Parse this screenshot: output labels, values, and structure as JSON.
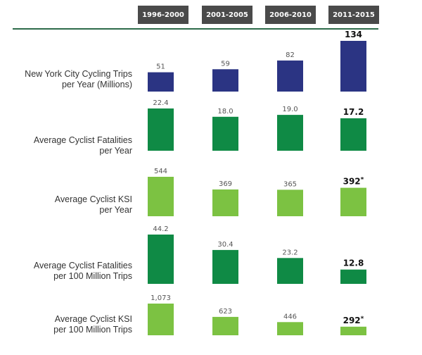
{
  "periods": [
    "1996-2000",
    "2001-2005",
    "2006-2010",
    "2011-2015"
  ],
  "colors": {
    "header_bg": "#4a4a4a",
    "rule": "#2d6b4a",
    "navy": "#2b3483",
    "dark_green": "#0f8a45",
    "light_green": "#7cc242"
  },
  "chart_data": [
    {
      "type": "bar",
      "label": "New York City Cycling Trips per Year (Millions)",
      "label_lines": [
        "New York City Cycling Trips",
        "per Year (Millions)"
      ],
      "color": "#2b3483",
      "categories": [
        "1996-2000",
        "2001-2005",
        "2006-2010",
        "2011-2015"
      ],
      "values": [
        51,
        59,
        82,
        134
      ],
      "value_labels": [
        "51",
        "59",
        "82",
        "134"
      ],
      "highlight_last": true
    },
    {
      "type": "bar",
      "label": "Average Cyclist Fatalities per Year",
      "label_lines": [
        "Average Cyclist Fatalities",
        "per Year"
      ],
      "color": "#0f8a45",
      "categories": [
        "1996-2000",
        "2001-2005",
        "2006-2010",
        "2011-2015"
      ],
      "values": [
        22.4,
        18.0,
        19.0,
        17.2
      ],
      "value_labels": [
        "22.4",
        "18.0",
        "19.0",
        "17.2"
      ],
      "highlight_last": true
    },
    {
      "type": "bar",
      "label": "Average Cyclist KSI per Year",
      "label_lines": [
        "Average Cyclist KSI",
        "per Year"
      ],
      "color": "#7cc242",
      "categories": [
        "1996-2000",
        "2001-2005",
        "2006-2010",
        "2011-2015"
      ],
      "values": [
        544,
        369,
        365,
        392
      ],
      "value_labels": [
        "544",
        "369",
        "365",
        "392*"
      ],
      "highlight_last": true
    },
    {
      "type": "bar",
      "label": "Average Cyclist Fatalities per 100 Million Trips",
      "label_lines": [
        "Average Cyclist Fatalities",
        "per 100 Million Trips"
      ],
      "color": "#0f8a45",
      "categories": [
        "1996-2000",
        "2001-2005",
        "2006-2010",
        "2011-2015"
      ],
      "values": [
        44.2,
        30.4,
        23.2,
        12.8
      ],
      "value_labels": [
        "44.2",
        "30.4",
        "23.2",
        "12.8"
      ],
      "highlight_last": true
    },
    {
      "type": "bar",
      "label": "Average Cyclist KSI per 100 Million Trips",
      "label_lines": [
        "Average Cyclist KSI",
        "per 100 Million Trips"
      ],
      "color": "#7cc242",
      "categories": [
        "1996-2000",
        "2001-2005",
        "2006-2010",
        "2011-2015"
      ],
      "values": [
        1073,
        623,
        446,
        292
      ],
      "value_labels": [
        "1,073",
        "623",
        "446",
        "292*"
      ],
      "highlight_last": true
    }
  ]
}
